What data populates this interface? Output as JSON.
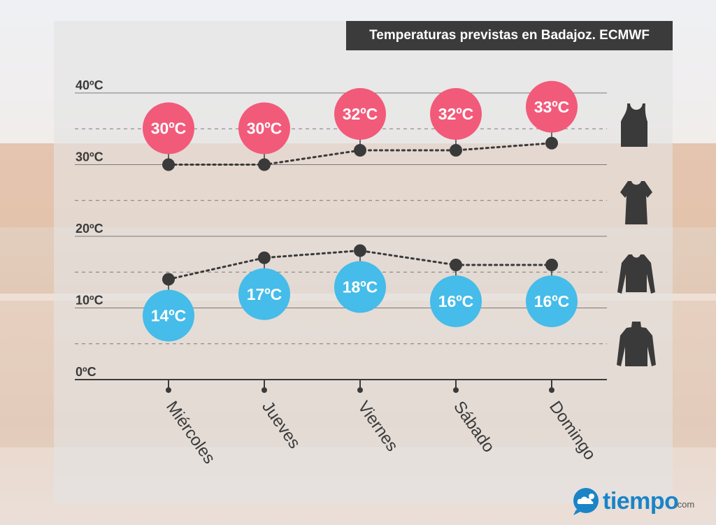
{
  "chart_data": {
    "type": "line",
    "title": "Temperaturas previstas en Badajoz. ECMWF",
    "categories": [
      "Miércoles",
      "Jueves",
      "Viernes",
      "Sábado",
      "Domingo"
    ],
    "series": [
      {
        "values": [
          30,
          30,
          32,
          32,
          33
        ],
        "labels": [
          "30ºC",
          "30ºC",
          "32ºC",
          "32ºC",
          "33ºC"
        ],
        "color": "#f25a7a"
      },
      {
        "values": [
          14,
          17,
          18,
          16,
          16
        ],
        "labels": [
          "14ºC",
          "17ºC",
          "18ºC",
          "16ºC",
          "16ºC"
        ],
        "color": "#45bce9"
      }
    ],
    "yticks": [
      "0ºC",
      "10ºC",
      "20ºC",
      "30ºC",
      "40ºC"
    ],
    "ylim": [
      0,
      40
    ],
    "grid": true,
    "xlabel": "",
    "ylabel": ""
  },
  "clothing_icons": [
    "tank-top-icon",
    "t-shirt-icon",
    "long-sleeve-shirt-icon",
    "turtleneck-sweater-icon"
  ],
  "brand": {
    "name": "tiempo",
    "suffix": ".com",
    "color": "#1a84c7"
  }
}
